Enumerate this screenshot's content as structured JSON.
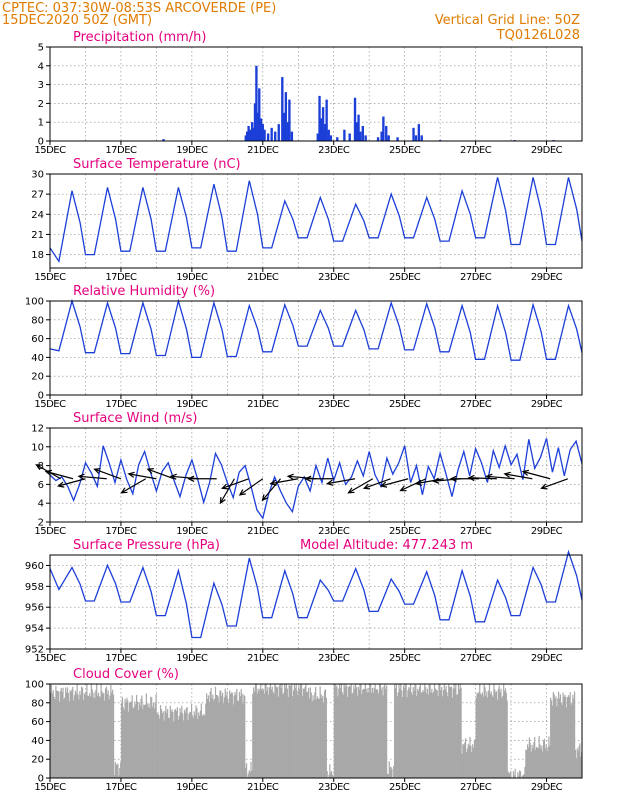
{
  "header": {
    "line1": "CPTEC:   037:30W-08:53S   ARCOVERDE (PE)",
    "line2": "15DEC2020 50Z (GMT)",
    "right1": "Vertical Grid Line: 50Z",
    "right2": "TQ0126L028"
  },
  "colors": {
    "header": "#e07b00",
    "title": "#e6007e",
    "series": "#1c3fd8",
    "cloud": "#a8a8a8",
    "wind_arrow": "#000000"
  },
  "chart_data": [
    {
      "type": "bar",
      "title": "Precipitation (mm/h)",
      "ylim": [
        0,
        5
      ],
      "yticks": [
        "0",
        "1",
        "2",
        "3",
        "4",
        "5"
      ],
      "xticks": [
        "15DEC",
        "17DEC",
        "19DEC",
        "21DEC",
        "23DEC",
        "25DEC",
        "27DEC",
        "29DEC"
      ],
      "x_days": [
        0,
        15
      ],
      "events": [
        {
          "day": 3.2,
          "value": 0.1
        },
        {
          "day": 5.6,
          "value": 0.08
        },
        {
          "day": 5.52,
          "value": 0.3
        },
        {
          "day": 5.56,
          "value": 0.5
        },
        {
          "day": 5.6,
          "value": 0.8
        },
        {
          "day": 5.65,
          "value": 0.6
        },
        {
          "day": 5.7,
          "value": 1.0
        },
        {
          "day": 5.74,
          "value": 0.7
        },
        {
          "day": 5.78,
          "value": 2.0
        },
        {
          "day": 5.82,
          "value": 4.0
        },
        {
          "day": 5.86,
          "value": 1.5
        },
        {
          "day": 5.9,
          "value": 2.8
        },
        {
          "day": 5.95,
          "value": 1.2
        },
        {
          "day": 6.0,
          "value": 0.9
        },
        {
          "day": 6.05,
          "value": 0.6
        },
        {
          "day": 6.15,
          "value": 0.4
        },
        {
          "day": 6.25,
          "value": 0.7
        },
        {
          "day": 6.35,
          "value": 0.5
        },
        {
          "day": 6.45,
          "value": 0.9
        },
        {
          "day": 6.55,
          "value": 3.4
        },
        {
          "day": 6.6,
          "value": 1.5
        },
        {
          "day": 6.65,
          "value": 2.6
        },
        {
          "day": 6.7,
          "value": 1.0
        },
        {
          "day": 6.75,
          "value": 2.2
        },
        {
          "day": 6.82,
          "value": 0.5
        },
        {
          "day": 7.55,
          "value": 0.4
        },
        {
          "day": 7.6,
          "value": 2.4
        },
        {
          "day": 7.66,
          "value": 1.2
        },
        {
          "day": 7.7,
          "value": 1.8
        },
        {
          "day": 7.75,
          "value": 0.9
        },
        {
          "day": 7.8,
          "value": 2.2
        },
        {
          "day": 7.86,
          "value": 0.6
        },
        {
          "day": 7.92,
          "value": 0.3
        },
        {
          "day": 8.1,
          "value": 0.2
        },
        {
          "day": 8.3,
          "value": 0.6
        },
        {
          "day": 8.45,
          "value": 0.4
        },
        {
          "day": 8.6,
          "value": 2.3
        },
        {
          "day": 8.65,
          "value": 1.0
        },
        {
          "day": 8.7,
          "value": 1.4
        },
        {
          "day": 8.75,
          "value": 0.5
        },
        {
          "day": 8.82,
          "value": 0.8
        },
        {
          "day": 8.9,
          "value": 0.3
        },
        {
          "day": 9.25,
          "value": 0.2
        },
        {
          "day": 9.35,
          "value": 0.5
        },
        {
          "day": 9.4,
          "value": 1.3
        },
        {
          "day": 9.48,
          "value": 0.8
        },
        {
          "day": 9.55,
          "value": 0.3
        },
        {
          "day": 9.8,
          "value": 0.2
        },
        {
          "day": 10.25,
          "value": 0.7
        },
        {
          "day": 10.32,
          "value": 0.3
        },
        {
          "day": 10.4,
          "value": 0.9
        },
        {
          "day": 10.48,
          "value": 0.3
        },
        {
          "day": 11.0,
          "value": 0.05
        },
        {
          "day": 13.1,
          "value": 0.05
        },
        {
          "day": 14.2,
          "value": 0.05
        }
      ]
    },
    {
      "type": "line",
      "title": "Surface Temperature (nC)",
      "ylim": [
        16,
        30
      ],
      "yticks": [
        "18",
        "21",
        "24",
        "27",
        "30"
      ],
      "xticks": [
        "15DEC",
        "17DEC",
        "19DEC",
        "21DEC",
        "23DEC",
        "25DEC",
        "27DEC",
        "29DEC"
      ],
      "x_days": [
        0,
        15
      ],
      "daily_max": [
        27.5,
        28.0,
        28.0,
        28.0,
        28.5,
        29.0,
        26.0,
        26.5,
        25.5,
        27.0,
        26.5,
        27.5,
        29.5,
        29.5,
        29.5,
        28.5
      ],
      "daily_min": [
        17.0,
        18.0,
        18.5,
        18.5,
        19.0,
        18.5,
        19.0,
        20.5,
        20.0,
        20.5,
        20.5,
        20.0,
        20.5,
        19.5,
        19.5,
        20.0
      ]
    },
    {
      "type": "line",
      "title": "Relative Humidity (%)",
      "ylim": [
        0,
        100
      ],
      "yticks": [
        "0",
        "20",
        "40",
        "60",
        "80",
        "100"
      ],
      "xticks": [
        "15DEC",
        "17DEC",
        "19DEC",
        "21DEC",
        "23DEC",
        "25DEC",
        "27DEC",
        "29DEC"
      ],
      "x_days": [
        0,
        15
      ],
      "daily_max": [
        100,
        98,
        98,
        100,
        98,
        95,
        96,
        90,
        90,
        98,
        97,
        95,
        95,
        96,
        95,
        92
      ],
      "daily_min": [
        47,
        45,
        44,
        42,
        40,
        41,
        46,
        52,
        52,
        49,
        48,
        46,
        38,
        37,
        38,
        45
      ]
    },
    {
      "type": "line",
      "title": "Surface Wind (m/s)",
      "ylim": [
        2,
        12
      ],
      "yticks": [
        "2",
        "4",
        "6",
        "8",
        "10",
        "12"
      ],
      "xticks": [
        "15DEC",
        "17DEC",
        "19DEC",
        "21DEC",
        "23DEC",
        "25DEC",
        "27DEC",
        "29DEC"
      ],
      "x_days": [
        0,
        15
      ],
      "speed": [
        7.0,
        6.4,
        6.8,
        5.8,
        4.3,
        6.0,
        8.3,
        7.2,
        5.8,
        10.1,
        8.3,
        6.2,
        8.6,
        6.5,
        5.0,
        8.1,
        9.5,
        7.3,
        5.3,
        7.4,
        8.3,
        6.4,
        4.7,
        7.0,
        8.6,
        6.5,
        4.1,
        6.2,
        9.3,
        8.1,
        6.2,
        4.6,
        7.3,
        8.0,
        5.8,
        3.3,
        2.4,
        5.0,
        6.8,
        5.3,
        4.0,
        3.1,
        5.8,
        6.8,
        5.3,
        8.0,
        6.2,
        8.8,
        6.4,
        8.3,
        6.0,
        6.8,
        8.5,
        6.9,
        9.5,
        7.0,
        5.8,
        8.8,
        7.1,
        8.3,
        10.1,
        6.2,
        8.0,
        4.9,
        7.9,
        6.6,
        9.3,
        7.1,
        4.7,
        7.5,
        9.5,
        6.9,
        9.8,
        8.3,
        6.2,
        9.6,
        7.8,
        10.1,
        8.1,
        9.2,
        6.5,
        10.8,
        7.7,
        8.9,
        10.9,
        7.3,
        9.9,
        6.9,
        9.7,
        10.6,
        8.2
      ],
      "vectors": [
        {
          "day": 0.3,
          "angle": 150
        },
        {
          "day": 0.65,
          "angle": 165
        },
        {
          "day": 1.0,
          "angle": 195
        },
        {
          "day": 1.6,
          "angle": 175
        },
        {
          "day": 2.0,
          "angle": 160
        },
        {
          "day": 2.7,
          "angle": 210
        },
        {
          "day": 3.0,
          "angle": 170
        },
        {
          "day": 3.5,
          "angle": 160
        },
        {
          "day": 4.2,
          "angle": 175
        },
        {
          "day": 4.7,
          "angle": 180
        },
        {
          "day": 5.2,
          "angle": 240
        },
        {
          "day": 5.6,
          "angle": 200
        },
        {
          "day": 6.0,
          "angle": 215
        },
        {
          "day": 6.5,
          "angle": 230
        },
        {
          "day": 7.0,
          "angle": 190
        },
        {
          "day": 7.5,
          "angle": 175
        },
        {
          "day": 8.0,
          "angle": 180
        },
        {
          "day": 8.6,
          "angle": 190
        },
        {
          "day": 9.1,
          "angle": 210
        },
        {
          "day": 9.6,
          "angle": 200
        },
        {
          "day": 10.1,
          "angle": 195
        },
        {
          "day": 10.6,
          "angle": 205
        },
        {
          "day": 11.1,
          "angle": 190
        },
        {
          "day": 11.6,
          "angle": 185
        },
        {
          "day": 12.1,
          "angle": 180
        },
        {
          "day": 12.6,
          "angle": 178
        },
        {
          "day": 13.1,
          "angle": 175
        },
        {
          "day": 13.6,
          "angle": 170
        },
        {
          "day": 14.1,
          "angle": 165
        },
        {
          "day": 14.6,
          "angle": 200
        }
      ]
    },
    {
      "type": "line",
      "title": "Surface Pressure (hPa)",
      "subtitle": "Model Altitude: 477.243 m",
      "ylim": [
        952,
        961
      ],
      "yticks": [
        "952",
        "954",
        "956",
        "958",
        "960"
      ],
      "xticks": [
        "15DEC",
        "17DEC",
        "19DEC",
        "21DEC",
        "23DEC",
        "25DEC",
        "27DEC",
        "29DEC"
      ],
      "x_days": [
        0,
        15
      ],
      "daily_max": [
        959.8,
        960.0,
        959.8,
        959.5,
        958.3,
        960.7,
        959.5,
        958.6,
        959.7,
        958.7,
        959.4,
        959.5,
        958.6,
        959.8,
        961.3,
        958.6
      ],
      "daily_min": [
        957.7,
        956.6,
        956.5,
        955.2,
        953.1,
        954.2,
        955.0,
        955.0,
        956.6,
        955.6,
        956.3,
        954.8,
        954.6,
        955.2,
        956.5,
        956.7
      ]
    },
    {
      "type": "bar",
      "title": "Cloud Cover (%)",
      "ylim": [
        0,
        100
      ],
      "yticks": [
        "0",
        "20",
        "40",
        "60",
        "80",
        "100"
      ],
      "xticks": [
        "15DEC",
        "17DEC",
        "19DEC",
        "21DEC",
        "23DEC",
        "25DEC",
        "27DEC",
        "29DEC"
      ],
      "x_days": [
        0,
        15
      ],
      "segments": [
        {
          "from": 0.0,
          "to": 1.8,
          "value": 91
        },
        {
          "from": 1.8,
          "to": 2.0,
          "value": 12
        },
        {
          "from": 2.0,
          "to": 3.0,
          "value": 80
        },
        {
          "from": 3.0,
          "to": 4.4,
          "value": 70
        },
        {
          "from": 4.4,
          "to": 5.5,
          "value": 88
        },
        {
          "from": 5.5,
          "to": 5.7,
          "value": 8
        },
        {
          "from": 5.7,
          "to": 7.3,
          "value": 96
        },
        {
          "from": 7.3,
          "to": 7.8,
          "value": 88
        },
        {
          "from": 7.8,
          "to": 8.0,
          "value": 6
        },
        {
          "from": 8.0,
          "to": 9.5,
          "value": 96
        },
        {
          "from": 9.5,
          "to": 9.7,
          "value": 10
        },
        {
          "from": 9.7,
          "to": 11.6,
          "value": 95
        },
        {
          "from": 11.6,
          "to": 12.0,
          "value": 35
        },
        {
          "from": 12.0,
          "to": 12.9,
          "value": 92
        },
        {
          "from": 12.9,
          "to": 13.4,
          "value": 3
        },
        {
          "from": 13.4,
          "to": 14.1,
          "value": 35
        },
        {
          "from": 14.1,
          "to": 14.8,
          "value": 85
        },
        {
          "from": 14.8,
          "to": 15.0,
          "value": 30
        }
      ]
    }
  ]
}
